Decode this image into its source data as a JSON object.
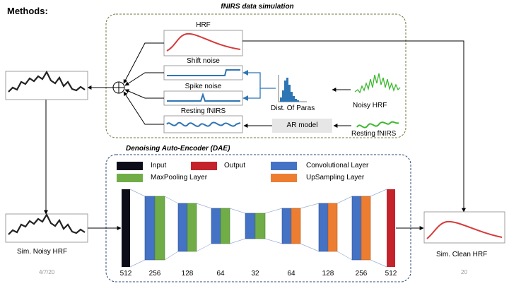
{
  "slide": {
    "heading": "Methods:",
    "date": "4/7/20",
    "page_number": "20"
  },
  "simulation": {
    "title": "fNIRS data simulation",
    "hrf_label": "HRF",
    "shift_noise_label": "Shift noise",
    "spike_noise_label": "Spike noise",
    "resting_label": "Resting fNIRS",
    "dist_label": "Dist. Of Paras",
    "noisy_hrf_label": "Noisy HRF",
    "ar_model_label": "AR model",
    "resting_src_label": "Resting fNIRS"
  },
  "dae": {
    "title": "Denoising Auto-Encoder (DAE)",
    "legend": [
      {
        "label": "Input",
        "color": "#0d0d1a"
      },
      {
        "label": "Output",
        "color": "#c4232b"
      },
      {
        "label": "Convolutional Layer",
        "color": "#4472c4"
      },
      {
        "label": "MaxPooling Layer",
        "color": "#70ad47"
      },
      {
        "label": "UpSampling Layer",
        "color": "#ed7d31"
      }
    ],
    "sizes": [
      "512",
      "256",
      "128",
      "64",
      "32",
      "64",
      "128",
      "256",
      "512"
    ]
  },
  "io": {
    "noisy_label": "Sim. Noisy HRF",
    "clean_label": "Sim. Clean HRF"
  },
  "colors": {
    "sim_border": "#6b7a3a",
    "dae_border": "#2e4a7a",
    "signal_blue": "#2e75b6",
    "hrf_red": "#d63a3a",
    "noisy_green": "#3cb82e",
    "ar_box": "#e6e6e6"
  }
}
